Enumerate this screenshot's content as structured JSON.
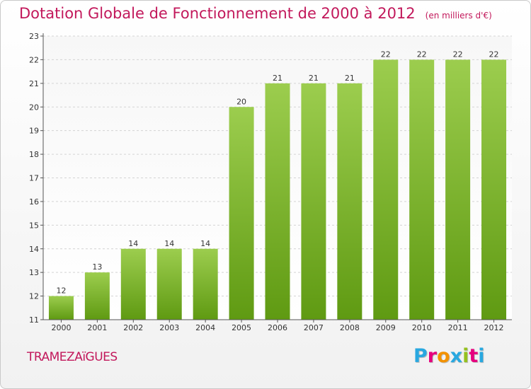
{
  "header": {
    "title": "Dotation Globale de Fonctionnement de 2000 à 2012",
    "unit_note": "(en milliers d'€)"
  },
  "footer": {
    "commune": "TRAMEZAïGUES",
    "brand_letters": [
      "P",
      "r",
      "o",
      "x",
      "i",
      "t",
      "i"
    ],
    "brand_colors": [
      "#29a8e0",
      "#e6007e",
      "#f39200",
      "#29a8e0",
      "#95c11f",
      "#e6007e",
      "#29a8e0"
    ]
  },
  "chart_data": {
    "type": "bar",
    "title": "Dotation Globale de Fonctionnement de 2000 à 2012",
    "subtitle": "(en milliers d'€)",
    "categories": [
      "2000",
      "2001",
      "2002",
      "2003",
      "2004",
      "2005",
      "2006",
      "2007",
      "2008",
      "2009",
      "2010",
      "2011",
      "2012"
    ],
    "values": [
      12,
      13,
      14,
      14,
      14,
      20,
      21,
      21,
      21,
      22,
      22,
      22,
      22
    ],
    "ylim": [
      11,
      23
    ],
    "yticks": [
      11,
      12,
      13,
      14,
      15,
      16,
      17,
      18,
      19,
      20,
      21,
      22,
      23
    ],
    "grid": true,
    "colors": {
      "bar_top": "#9ccd4e",
      "bar_bottom": "#5f9a12",
      "grid": "#d4d4d4",
      "axis": "#555555"
    }
  }
}
